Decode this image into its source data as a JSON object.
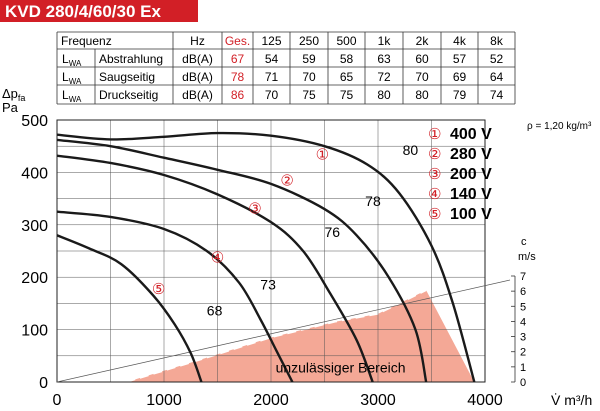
{
  "header": {
    "title": "KVD 280/4/60/30 Ex",
    "accent_color": "#d21f26"
  },
  "sound_table": {
    "columns": [
      "Frequenz",
      "",
      "Hz",
      "Ges.",
      "125",
      "250",
      "500",
      "1k",
      "2k",
      "4k",
      "8k"
    ],
    "rows": [
      {
        "sym_main": "L",
        "sym_sub": "WA",
        "label": "Abstrahlung",
        "unit": "dB(A)",
        "values": [
          "67",
          "54",
          "59",
          "58",
          "63",
          "60",
          "57",
          "52"
        ]
      },
      {
        "sym_main": "L",
        "sym_sub": "WA",
        "label": "Saugseitig",
        "unit": "dB(A)",
        "values": [
          "78",
          "71",
          "70",
          "65",
          "72",
          "70",
          "69",
          "64"
        ]
      },
      {
        "sym_main": "L",
        "sym_sub": "WA",
        "label": "Druckseitig",
        "unit": "dB(A)",
        "values": [
          "86",
          "70",
          "75",
          "75",
          "80",
          "80",
          "79",
          "74"
        ]
      }
    ],
    "highlight_color": "#d21f26"
  },
  "chart_data": {
    "type": "line",
    "xlabel": "V̇ m³/h",
    "ylabel_main": "Δp",
    "ylabel_sub": "fa",
    "ylabel_unit": "Pa",
    "xlim": [
      0,
      4000
    ],
    "ylim": [
      0,
      500
    ],
    "x_ticks": [
      "0",
      "1000",
      "2000",
      "3000",
      "4000"
    ],
    "y_ticks": [
      "0",
      "100",
      "200",
      "300",
      "400",
      "500"
    ],
    "density_note": "ρ = 1,20 kg/m³",
    "grid": true,
    "series": [
      {
        "name": "400 V",
        "marker": "①",
        "points": [
          [
            0,
            472
          ],
          [
            500,
            463
          ],
          [
            1000,
            468
          ],
          [
            1500,
            475
          ],
          [
            2000,
            470
          ],
          [
            2500,
            450
          ],
          [
            2900,
            415
          ],
          [
            3200,
            360
          ],
          [
            3500,
            260
          ],
          [
            3700,
            150
          ],
          [
            3900,
            0
          ]
        ]
      },
      {
        "name": "280 V",
        "marker": "②",
        "points": [
          [
            0,
            462
          ],
          [
            500,
            450
          ],
          [
            1000,
            428
          ],
          [
            1500,
            405
          ],
          [
            2000,
            378
          ],
          [
            2500,
            330
          ],
          [
            2800,
            280
          ],
          [
            3100,
            200
          ],
          [
            3350,
            100
          ],
          [
            3450,
            0
          ]
        ]
      },
      {
        "name": "200 V",
        "marker": "③",
        "points": [
          [
            0,
            432
          ],
          [
            500,
            418
          ],
          [
            1000,
            395
          ],
          [
            1500,
            358
          ],
          [
            2000,
            305
          ],
          [
            2300,
            250
          ],
          [
            2550,
            170
          ],
          [
            2800,
            80
          ],
          [
            2950,
            0
          ]
        ]
      },
      {
        "name": "140 V",
        "marker": "④",
        "points": [
          [
            0,
            325
          ],
          [
            500,
            315
          ],
          [
            1000,
            292
          ],
          [
            1400,
            250
          ],
          [
            1700,
            190
          ],
          [
            1900,
            120
          ],
          [
            2050,
            60
          ],
          [
            2200,
            0
          ]
        ]
      },
      {
        "name": "100 V",
        "marker": "⑤",
        "points": [
          [
            0,
            280
          ],
          [
            300,
            255
          ],
          [
            600,
            225
          ],
          [
            900,
            165
          ],
          [
            1100,
            110
          ],
          [
            1250,
            55
          ],
          [
            1350,
            0
          ]
        ]
      }
    ],
    "curve_labels": [
      {
        "text": "80",
        "x": 3230,
        "y": 433
      },
      {
        "text": "78",
        "x": 2880,
        "y": 336
      },
      {
        "text": "76",
        "x": 2500,
        "y": 277
      },
      {
        "text": "73",
        "x": 1900,
        "y": 177
      },
      {
        "text": "68",
        "x": 1400,
        "y": 127
      }
    ],
    "curve_markers": [
      {
        "text": "①",
        "x": 2480,
        "y": 425
      },
      {
        "text": "②",
        "x": 2150,
        "y": 375
      },
      {
        "text": "③",
        "x": 1850,
        "y": 322
      },
      {
        "text": "④",
        "x": 1500,
        "y": 228
      },
      {
        "text": "⑤",
        "x": 950,
        "y": 168
      }
    ],
    "restricted_area": {
      "label": "unzulässiger Bereich",
      "fill_color": "#f4a896",
      "boundary_points": [
        [
          650,
          0
        ],
        [
          1300,
          40
        ],
        [
          2000,
          85
        ],
        [
          2600,
          115
        ],
        [
          3000,
          130
        ],
        [
          3450,
          175
        ],
        [
          3900,
          0
        ]
      ]
    },
    "velocity_axis": {
      "label_top": "c",
      "label_unit": "m/s",
      "ticks": [
        "0",
        "1",
        "2",
        "3",
        "4",
        "5",
        "6",
        "7"
      ],
      "line_points": [
        [
          0,
          0
        ],
        [
          4400,
          210
        ]
      ]
    },
    "line_color": "#1a1a1a",
    "accent_color": "#d21f26"
  }
}
